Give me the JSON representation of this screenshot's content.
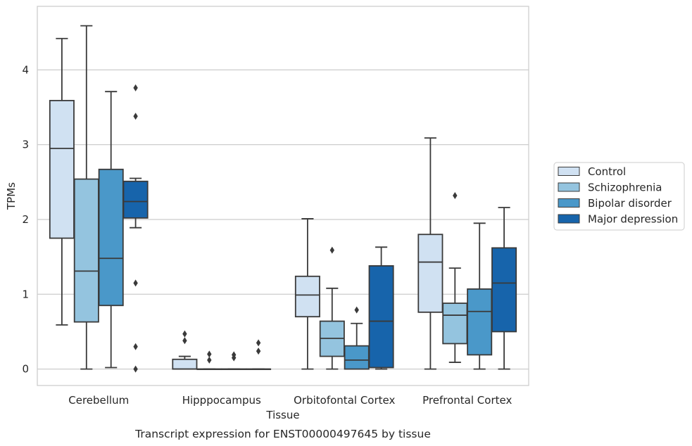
{
  "chart_data": {
    "type": "box",
    "title": "Transcript expression for ENST00000497645 by tissue",
    "xlabel": "Tissue",
    "ylabel": "TPMs",
    "ylim": [
      -0.22,
      4.85
    ],
    "yticks": [
      0,
      1,
      2,
      3,
      4
    ],
    "grid": "horizontal",
    "legend_position": "right",
    "categories": [
      "Cerebellum",
      "Hipppocampus",
      "Orbitofontal Cortex",
      "Prefrontal Cortex"
    ],
    "series": [
      {
        "name": "Control",
        "color": "#d0e1f2",
        "boxes": [
          {
            "whislo": 0.59,
            "q1": 1.75,
            "med": 2.95,
            "q3": 3.59,
            "whishi": 4.42,
            "fliers": []
          },
          {
            "whislo": 0.0,
            "q1": 0.0,
            "med": 0.0,
            "q3": 0.13,
            "whishi": 0.17,
            "fliers": [
              0.38,
              0.47
            ]
          },
          {
            "whislo": 0.0,
            "q1": 0.7,
            "med": 0.99,
            "q3": 1.24,
            "whishi": 2.01,
            "fliers": []
          },
          {
            "whislo": 0.0,
            "q1": 0.76,
            "med": 1.43,
            "q3": 1.8,
            "whishi": 3.09,
            "fliers": []
          }
        ]
      },
      {
        "name": "Schizophrenia",
        "color": "#94c4df",
        "boxes": [
          {
            "whislo": 0.0,
            "q1": 0.63,
            "med": 1.31,
            "q3": 2.54,
            "whishi": 4.59,
            "fliers": []
          },
          {
            "whislo": 0.0,
            "q1": 0.0,
            "med": 0.0,
            "q3": 0.0,
            "whishi": 0.0,
            "fliers": [
              0.12,
              0.2
            ]
          },
          {
            "whislo": 0.0,
            "q1": 0.17,
            "med": 0.41,
            "q3": 0.64,
            "whishi": 1.08,
            "fliers": [
              1.59
            ]
          },
          {
            "whislo": 0.09,
            "q1": 0.34,
            "med": 0.72,
            "q3": 0.88,
            "whishi": 1.35,
            "fliers": [
              2.32
            ]
          }
        ]
      },
      {
        "name": "Bipolar disorder",
        "color": "#4a98c9",
        "boxes": [
          {
            "whislo": 0.02,
            "q1": 0.85,
            "med": 1.48,
            "q3": 2.67,
            "whishi": 3.71,
            "fliers": []
          },
          {
            "whislo": 0.0,
            "q1": 0.0,
            "med": 0.0,
            "q3": 0.0,
            "whishi": 0.0,
            "fliers": [
              0.15,
              0.19
            ]
          },
          {
            "whislo": 0.0,
            "q1": 0.0,
            "med": 0.12,
            "q3": 0.31,
            "whishi": 0.61,
            "fliers": [
              0.79
            ]
          },
          {
            "whislo": 0.0,
            "q1": 0.19,
            "med": 0.77,
            "q3": 1.07,
            "whishi": 1.95,
            "fliers": []
          }
        ]
      },
      {
        "name": "Major depression",
        "color": "#1764ab",
        "boxes": [
          {
            "whislo": 1.89,
            "q1": 2.02,
            "med": 2.24,
            "q3": 2.51,
            "whishi": 2.55,
            "fliers": [
              0.0,
              0.3,
              1.15,
              3.38,
              3.76
            ]
          },
          {
            "whislo": 0.0,
            "q1": 0.0,
            "med": 0.0,
            "q3": 0.0,
            "whishi": 0.0,
            "fliers": [
              0.24,
              0.35
            ]
          },
          {
            "whislo": 0.0,
            "q1": 0.02,
            "med": 0.64,
            "q3": 1.38,
            "whishi": 1.63,
            "fliers": []
          },
          {
            "whislo": 0.0,
            "q1": 0.5,
            "med": 1.15,
            "q3": 1.62,
            "whishi": 2.16,
            "fliers": []
          }
        ]
      }
    ]
  }
}
